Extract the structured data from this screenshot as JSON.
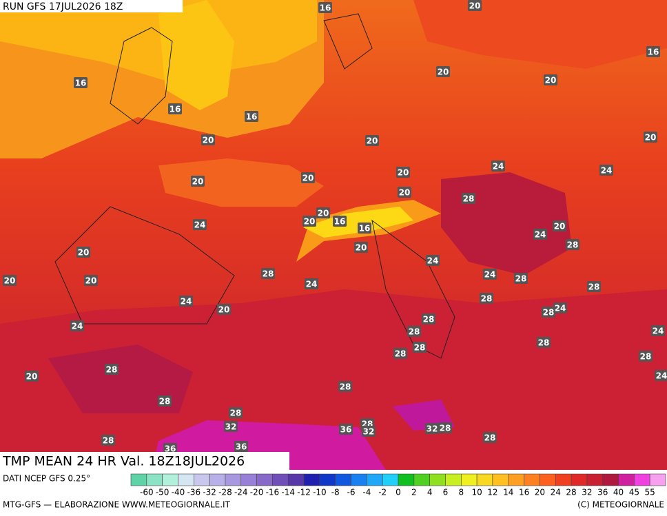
{
  "header": {
    "run": "RUN GFS 17JUL2026 18Z"
  },
  "map": {
    "title": "TMP MEAN 24 HR Val. 18Z18JUL2026",
    "contour_labels": [
      16,
      20,
      16,
      16,
      20,
      20,
      16,
      16,
      20,
      20,
      20,
      24,
      24,
      20,
      20,
      20,
      20,
      28,
      20,
      16,
      16,
      20,
      24,
      20,
      24,
      28,
      20,
      20,
      24,
      20,
      20,
      28,
      24,
      24,
      28,
      28,
      24,
      20,
      28,
      24,
      28,
      24,
      28,
      28,
      24,
      28,
      28,
      28,
      28,
      28,
      20,
      24,
      28,
      28,
      28,
      28,
      32,
      36,
      32,
      32,
      28,
      28,
      36,
      28,
      36
    ]
  },
  "footer": {
    "source": "DATI NCEP GFS 0.25°",
    "credit": "MTG-GFS — ELABORAZIONE WWW.METEOGIORNALE.IT",
    "copyright": "(C) METEOGIORNALE",
    "scale_labels": [
      -60,
      -50,
      -40,
      -36,
      -32,
      -28,
      -24,
      -20,
      -16,
      -14,
      -12,
      -10,
      -8,
      -6,
      -4,
      -2,
      0,
      2,
      4,
      6,
      8,
      10,
      12,
      14,
      16,
      20,
      24,
      28,
      32,
      36,
      40,
      45,
      55
    ],
    "scale_colors": [
      "#5fd3a8",
      "#8ae3c4",
      "#b2f0dc",
      "#d4e6f2",
      "#c8c8ee",
      "#b8b0e8",
      "#a898e0",
      "#9880d8",
      "#8868c8",
      "#7050b8",
      "#5838a8",
      "#2020b0",
      "#1038c8",
      "#1058e0",
      "#1880f0",
      "#20a8f8",
      "#20d0f8",
      "#10c020",
      "#50d020",
      "#90e020",
      "#c8f020",
      "#f0f020",
      "#f8d820",
      "#ffc020",
      "#ffa020",
      "#ff8020",
      "#ff6020",
      "#f04020",
      "#e02828",
      "#c82030",
      "#b01840",
      "#d020a0",
      "#f040e0",
      "#f8a0f0"
    ]
  }
}
